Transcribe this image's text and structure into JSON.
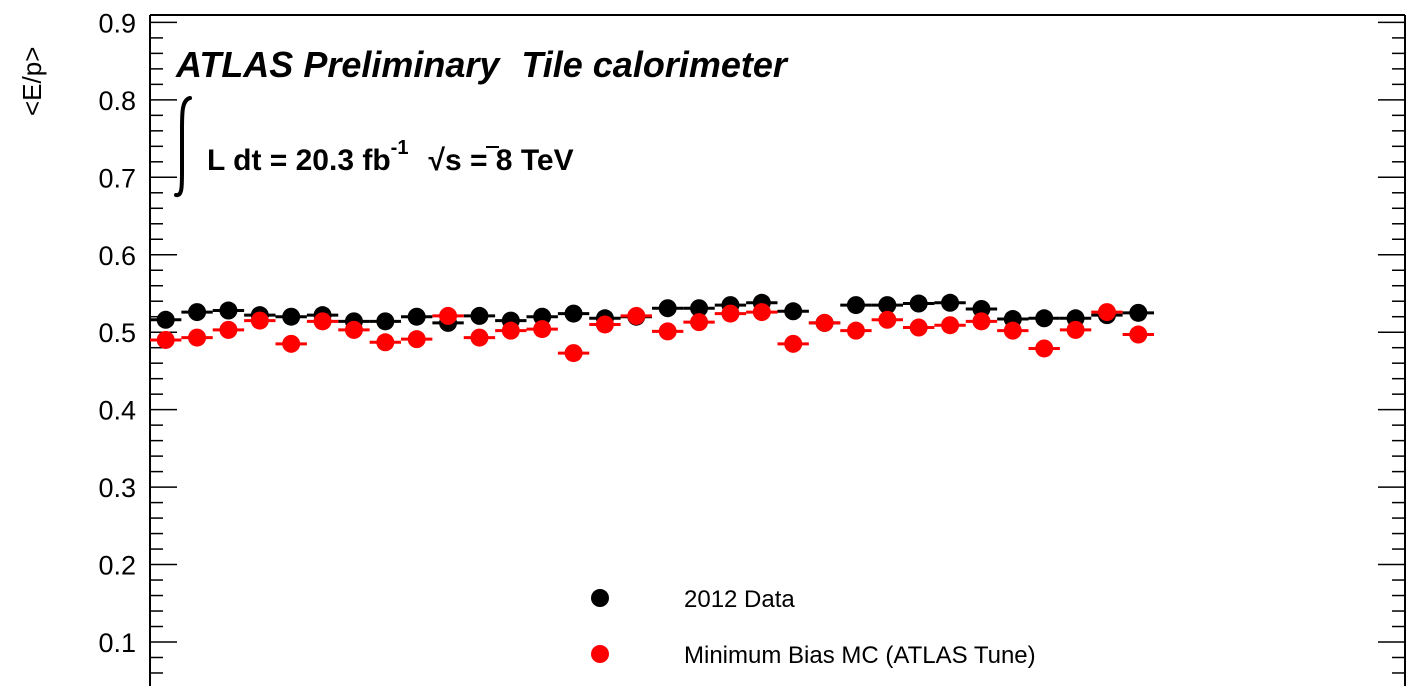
{
  "chart_data": {
    "type": "scatter",
    "title": "ATLAS Preliminary",
    "subtitle": "Tile calorimeter",
    "luminosity": {
      "lumi_prefix": "L dt = 20.3 fb",
      "lumi_exp": "-1",
      "energy_rest": "s = 8 TeV"
    },
    "xlabel": "",
    "ylabel": "<E/p>",
    "ylim": [
      0.05,
      0.9
    ],
    "yticks": [
      "0.1",
      "0.2",
      "0.3",
      "0.4",
      "0.5",
      "0.6",
      "0.7",
      "0.8",
      "0.9"
    ],
    "legend_position": "bottom-center",
    "bins": 40,
    "series": [
      {
        "name": "2012 Data",
        "color": "#000000",
        "values": [
          0.516,
          0.526,
          0.528,
          0.522,
          0.52,
          0.522,
          0.514,
          0.514,
          0.52,
          0.512,
          0.521,
          0.515,
          0.52,
          0.524,
          0.518,
          0.52,
          0.531,
          0.531,
          0.535,
          0.538,
          0.527,
          0.512,
          0.535,
          0.535,
          0.537,
          0.538,
          0.53,
          0.517,
          0.518,
          0.518,
          0.522,
          0.525
        ]
      },
      {
        "name": "Minimum Bias MC (ATLAS Tune)",
        "color": "#ff0000",
        "values": [
          0.49,
          0.493,
          0.503,
          0.515,
          0.485,
          0.514,
          0.503,
          0.487,
          0.491,
          0.521,
          0.493,
          0.502,
          0.504,
          0.473,
          0.51,
          0.521,
          0.501,
          0.513,
          0.524,
          0.526,
          0.485,
          0.512,
          0.502,
          0.516,
          0.506,
          0.509,
          0.514,
          0.502,
          0.479,
          0.503,
          0.526,
          0.497
        ]
      }
    ]
  }
}
